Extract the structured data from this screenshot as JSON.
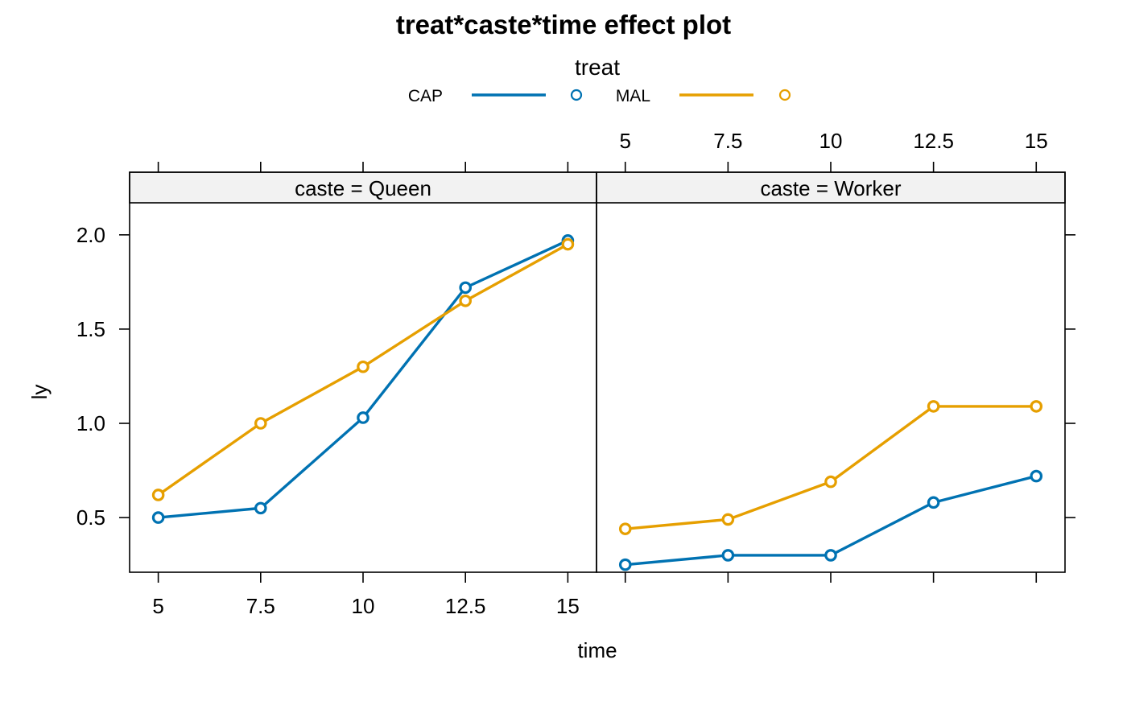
{
  "chart_data": {
    "type": "line",
    "title": "treat*caste*time effect plot",
    "xlabel": "time",
    "ylabel": "ly",
    "xlim": [
      4.3,
      15.7
    ],
    "ylim": [
      0.21,
      2.17
    ],
    "x_ticks": [
      5,
      7.5,
      10,
      12.5,
      15
    ],
    "x_tick_labels": [
      "5",
      "7.5",
      "10",
      "12.5",
      "15"
    ],
    "y_ticks": [
      0.5,
      1.0,
      1.5,
      2.0
    ],
    "y_tick_labels": [
      "0.5",
      "1.0",
      "1.5",
      "2.0"
    ],
    "legend": {
      "title": "treat",
      "placement": "top",
      "entries": [
        {
          "name": "CAP",
          "color": "#0072B2"
        },
        {
          "name": "MAL",
          "color": "#E69F00"
        }
      ]
    },
    "panels": [
      {
        "strip": "caste = Queen",
        "x": [
          5,
          7.5,
          10,
          12.5,
          15
        ],
        "series": [
          {
            "name": "CAP",
            "color": "#0072B2",
            "values": [
              0.5,
              0.55,
              1.03,
              1.72,
              1.97
            ]
          },
          {
            "name": "MAL",
            "color": "#E69F00",
            "values": [
              0.62,
              1.0,
              1.3,
              1.65,
              1.95
            ]
          }
        ]
      },
      {
        "strip": "caste = Worker",
        "x": [
          5,
          7.5,
          10,
          12.5,
          15
        ],
        "series": [
          {
            "name": "CAP",
            "color": "#0072B2",
            "values": [
              0.25,
              0.3,
              0.3,
              0.58,
              0.72
            ]
          },
          {
            "name": "MAL",
            "color": "#E69F00",
            "values": [
              0.44,
              0.49,
              0.69,
              1.09,
              1.09
            ]
          }
        ]
      }
    ]
  }
}
